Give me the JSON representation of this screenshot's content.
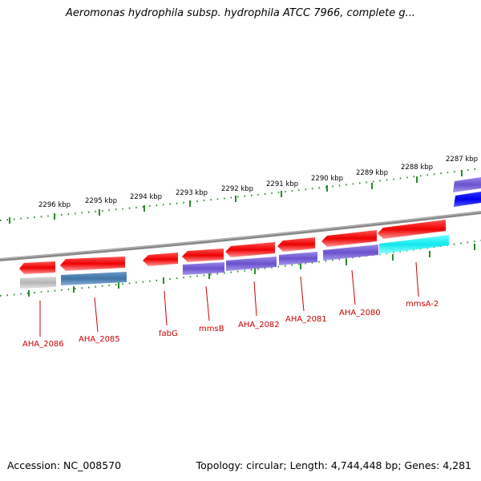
{
  "title": "Aeromonas hydrophila subsp. hydrophila ATCC 7966, complete g...",
  "accession": "Accession: NC_008570",
  "topology": "Topology: circular; Length: 4,744,448 bp; Genes: 4,281",
  "scale_labels": [
    "2296 kbp",
    "2295 kbp",
    "2294 kbp",
    "2293 kbp",
    "2292 kbp",
    "2291 kbp",
    "2290 kbp",
    "2289 kbp",
    "2288 kbp",
    "2287 kbp"
  ],
  "genes": [
    {
      "label": "AHA_2086",
      "forward_color": "#ee1111",
      "cds_color": "#bbbbbb"
    },
    {
      "label": "AHA_2085",
      "forward_color": "#ee1111",
      "cds_color": "#4a7fb0"
    },
    {
      "label": "fabG",
      "forward_color": "#ee1111",
      "cds_color": ""
    },
    {
      "label": "mmsB",
      "forward_color": "#ee1111",
      "cds_color": "#7a63d6"
    },
    {
      "label": "AHA_2082",
      "forward_color": "#ee1111",
      "cds_color": "#7a63d6"
    },
    {
      "label": "AHA_2081",
      "forward_color": "#ee1111",
      "cds_color": "#7a63d6"
    },
    {
      "label": "AHA_2080",
      "forward_color": "#ee1111",
      "cds_color": "#7a63d6"
    },
    {
      "label": "mmsA-2",
      "forward_color": "#ee1111",
      "cds_color": "#22eeee"
    }
  ],
  "colors": {
    "backbone": "#888888",
    "tick": "#2a8a2a",
    "label": "#cc0000"
  }
}
